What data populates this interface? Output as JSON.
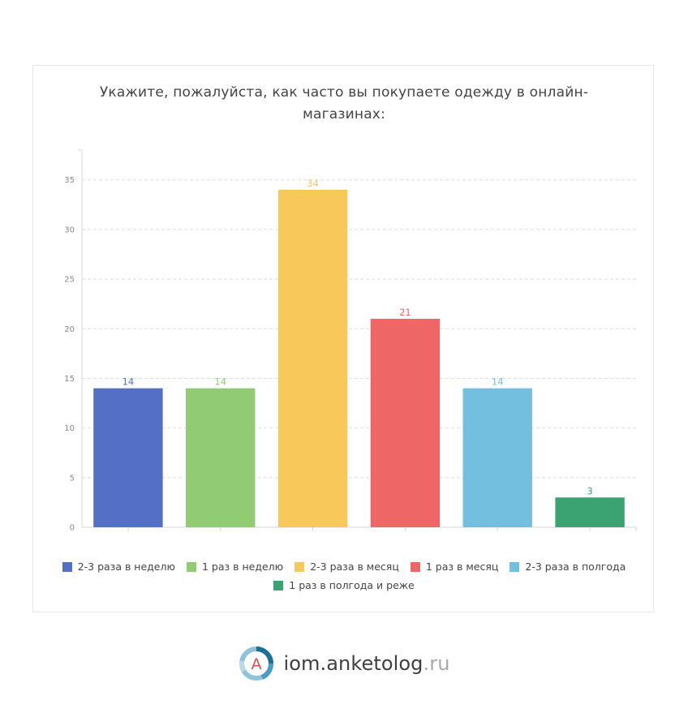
{
  "chart_data": {
    "type": "bar",
    "title": "Укажите, пожалуйста, как часто вы покупаете одежду в онлайн-магазинах:",
    "title_lines": [
      "Укажите, пожалуйста, как часто вы покупаете одежду в онлайн-",
      "магазинах:"
    ],
    "categories": [
      "2-3 раза в неделю",
      "1 раз в неделю",
      "2-3 раза в месяц",
      "1 раз в месяц",
      "2-3 раза в полгода",
      "1 раз в полгода и реже"
    ],
    "values": [
      14,
      14,
      34,
      21,
      14,
      3
    ],
    "colors": [
      "#5470c6",
      "#91cc75",
      "#f9c85b",
      "#ef6666",
      "#73bfe0",
      "#3ba272"
    ],
    "ylim": [
      0,
      38
    ],
    "yticks": [
      0,
      5,
      10,
      15,
      20,
      25,
      30,
      35
    ],
    "grid": true,
    "legend": "bottom",
    "xlabel": "",
    "ylabel": ""
  },
  "footer": {
    "logo_letter": "A",
    "brand_main": "iom.anketolog",
    "brand_tld": ".ru"
  }
}
